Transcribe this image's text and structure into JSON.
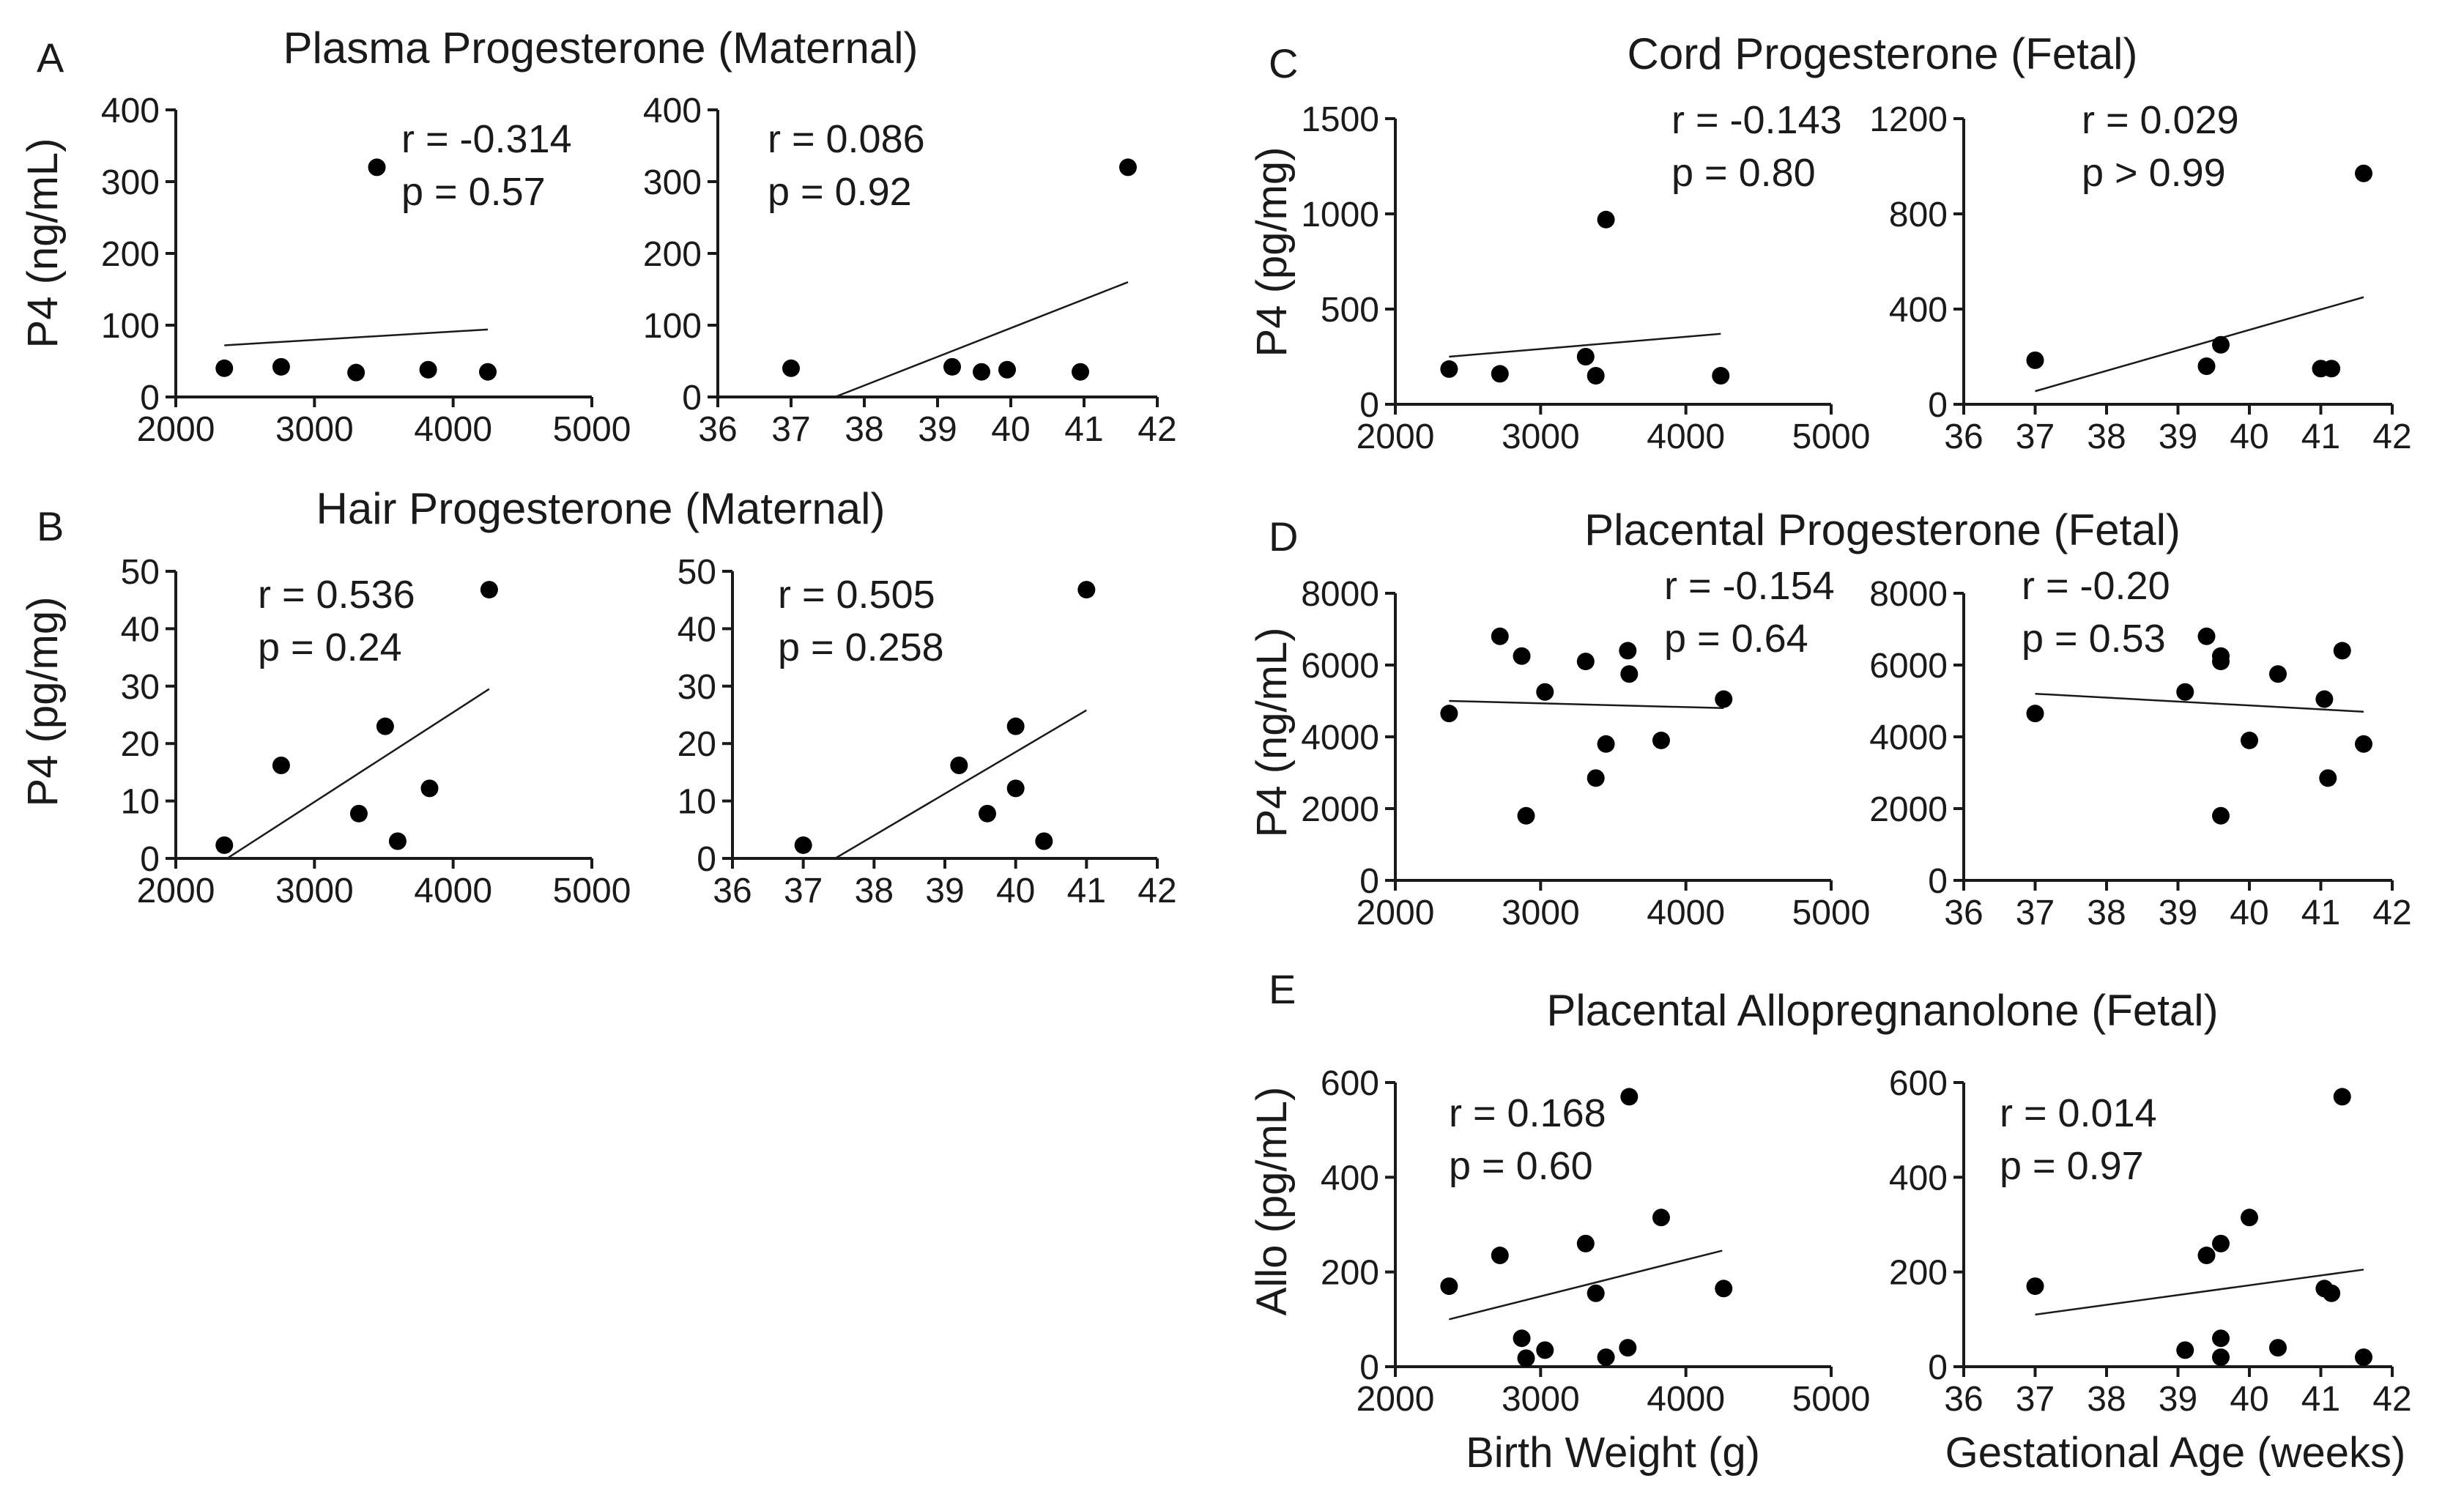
{
  "colors": {
    "ink": "#1a1a1a",
    "marker": "#000000",
    "background": "#ffffff"
  },
  "chart_data": [
    {
      "id": "A-bw",
      "panel": "A",
      "type": "scatter",
      "title": "Plasma Progesterone (Maternal)",
      "ylabel": "P4 (ng/mL)",
      "xlabel": "",
      "xlim": [
        2000,
        5000
      ],
      "ylim": [
        0,
        400
      ],
      "xticks": [
        "2000",
        "3000",
        "4000",
        "5000"
      ],
      "yticks": [
        "0",
        "100",
        "200",
        "300",
        "400"
      ],
      "xtick_values": [
        2000,
        3000,
        4000,
        5000
      ],
      "ytick_values": [
        0,
        100,
        200,
        300,
        400
      ],
      "stats": [
        "r = -0.314",
        "p = 0.57"
      ],
      "x": [
        2350,
        2760,
        3300,
        3450,
        3820,
        4250
      ],
      "y": [
        40,
        42,
        34,
        320,
        38,
        35
      ],
      "fit": {
        "x": [
          2350,
          4250
        ],
        "y": [
          72,
          94
        ]
      }
    },
    {
      "id": "A-ga",
      "panel": "A",
      "type": "scatter",
      "title": "",
      "ylabel": "",
      "xlabel": "",
      "xlim": [
        36,
        42
      ],
      "ylim": [
        0,
        400
      ],
      "xticks": [
        "36",
        "37",
        "38",
        "39",
        "40",
        "41",
        "42"
      ],
      "yticks": [
        "0",
        "100",
        "200",
        "300",
        "400"
      ],
      "xtick_values": [
        36,
        37,
        38,
        39,
        40,
        41,
        42
      ],
      "ytick_values": [
        0,
        100,
        200,
        300,
        400
      ],
      "stats": [
        "r = 0.086",
        "p = 0.92"
      ],
      "x": [
        37.0,
        39.2,
        39.6,
        39.95,
        40.95,
        41.6
      ],
      "y": [
        40,
        42,
        35,
        38,
        35,
        320
      ],
      "fit": {
        "x": [
          37.6,
          41.6
        ],
        "y": [
          0,
          160
        ]
      }
    },
    {
      "id": "B-bw",
      "panel": "B",
      "type": "scatter",
      "title": "Hair Progesterone (Maternal)",
      "ylabel": "P4 (pg/mg)",
      "xlabel": "",
      "xlim": [
        2000,
        5000
      ],
      "ylim": [
        0,
        50
      ],
      "xticks": [
        "2000",
        "3000",
        "4000",
        "5000"
      ],
      "yticks": [
        "0",
        "10",
        "20",
        "30",
        "40",
        "50"
      ],
      "xtick_values": [
        2000,
        3000,
        4000,
        5000
      ],
      "ytick_values": [
        0,
        10,
        20,
        30,
        40,
        50
      ],
      "stats": [
        "r = 0.536",
        "p = 0.24"
      ],
      "x": [
        2350,
        2760,
        3320,
        3510,
        3600,
        3830,
        4260
      ],
      "y": [
        2.3,
        16.2,
        7.8,
        23,
        3,
        12.2,
        46.8
      ],
      "fit": {
        "x": [
          2370,
          4260
        ],
        "y": [
          0,
          29.5
        ]
      }
    },
    {
      "id": "B-ga",
      "panel": "B",
      "type": "scatter",
      "title": "",
      "ylabel": "",
      "xlabel": "",
      "xlim": [
        36,
        42
      ],
      "ylim": [
        0,
        50
      ],
      "xticks": [
        "36",
        "37",
        "38",
        "39",
        "40",
        "41",
        "42"
      ],
      "yticks": [
        "0",
        "10",
        "20",
        "30",
        "40",
        "50"
      ],
      "xtick_values": [
        36,
        37,
        38,
        39,
        40,
        41,
        42
      ],
      "ytick_values": [
        0,
        10,
        20,
        30,
        40,
        50
      ],
      "stats": [
        "r = 0.505",
        "p = 0.258"
      ],
      "x": [
        37.0,
        39.2,
        39.6,
        40.0,
        40.0,
        40.4,
        41.0
      ],
      "y": [
        2.3,
        16.2,
        7.8,
        23,
        12.2,
        3,
        46.8
      ],
      "fit": {
        "x": [
          37.45,
          41.0
        ],
        "y": [
          0,
          25.8
        ]
      }
    },
    {
      "id": "C-bw",
      "panel": "C",
      "type": "scatter",
      "title": "Cord Progesterone (Fetal)",
      "ylabel": "P4 (pg/mg)",
      "xlabel": "",
      "xlim": [
        2000,
        5000
      ],
      "ylim": [
        0,
        1500
      ],
      "xticks": [
        "2000",
        "3000",
        "4000",
        "5000"
      ],
      "yticks": [
        "0",
        "500",
        "1000",
        "1500"
      ],
      "xtick_values": [
        2000,
        3000,
        4000,
        5000
      ],
      "ytick_values": [
        0,
        500,
        1000,
        1500
      ],
      "stats": [
        "r = -0.143",
        "p = 0.80"
      ],
      "x": [
        2370,
        2720,
        3310,
        3380,
        3450,
        4240
      ],
      "y": [
        185,
        160,
        250,
        150,
        970,
        150
      ],
      "fit": {
        "x": [
          2370,
          4240
        ],
        "y": [
          250,
          370
        ]
      }
    },
    {
      "id": "C-ga",
      "panel": "C",
      "type": "scatter",
      "title": "",
      "ylabel": "",
      "xlabel": "",
      "xlim": [
        36,
        42
      ],
      "ylim": [
        0,
        1200
      ],
      "xticks": [
        "36",
        "37",
        "38",
        "39",
        "40",
        "41",
        "42"
      ],
      "yticks": [
        "0",
        "400",
        "800",
        "1200"
      ],
      "xtick_values": [
        36,
        37,
        38,
        39,
        40,
        41,
        42
      ],
      "ytick_values": [
        0,
        400,
        800,
        1200
      ],
      "stats": [
        "r = 0.029",
        "p > 0.99"
      ],
      "x": [
        37.0,
        39.4,
        39.6,
        41.0,
        41.15,
        41.6
      ],
      "y": [
        185,
        160,
        250,
        150,
        150,
        970
      ],
      "fit": {
        "x": [
          37.0,
          41.6
        ],
        "y": [
          55,
          450
        ]
      }
    },
    {
      "id": "D-bw",
      "panel": "D",
      "type": "scatter",
      "title": "Placental Progesterone (Fetal)",
      "ylabel": "P4 (ng/mL)",
      "xlabel": "",
      "xlim": [
        2000,
        5000
      ],
      "ylim": [
        0,
        8000
      ],
      "xticks": [
        "2000",
        "3000",
        "4000",
        "5000"
      ],
      "yticks": [
        "0",
        "2000",
        "4000",
        "6000",
        "8000"
      ],
      "xtick_values": [
        2000,
        3000,
        4000,
        5000
      ],
      "ytick_values": [
        0,
        2000,
        4000,
        6000,
        8000
      ],
      "stats": [
        "r = -0.154",
        "p = 0.64"
      ],
      "x": [
        2370,
        2720,
        2870,
        2900,
        3030,
        3310,
        3380,
        3450,
        3600,
        3610,
        3830,
        4260
      ],
      "y": [
        4650,
        6800,
        6250,
        1800,
        5250,
        6100,
        2850,
        3800,
        6400,
        5750,
        3900,
        5050
      ],
      "fit": {
        "x": [
          2370,
          4260
        ],
        "y": [
          5000,
          4800
        ]
      }
    },
    {
      "id": "D-ga",
      "panel": "D",
      "type": "scatter",
      "title": "",
      "ylabel": "",
      "xlabel": "",
      "xlim": [
        36,
        42
      ],
      "ylim": [
        0,
        8000
      ],
      "xticks": [
        "36",
        "37",
        "38",
        "39",
        "40",
        "41",
        "42"
      ],
      "yticks": [
        "0",
        "2000",
        "4000",
        "6000",
        "8000"
      ],
      "xtick_values": [
        36,
        37,
        38,
        39,
        40,
        41,
        42
      ],
      "ytick_values": [
        0,
        2000,
        4000,
        6000,
        8000
      ],
      "stats": [
        "r = -0.20",
        "p = 0.53"
      ],
      "x": [
        37.0,
        39.1,
        39.4,
        39.6,
        39.6,
        39.6,
        40.0,
        40.4,
        41.05,
        41.1,
        41.3,
        41.6
      ],
      "y": [
        4650,
        5250,
        6800,
        6250,
        6100,
        1800,
        3900,
        5750,
        5050,
        2850,
        6400,
        3800
      ],
      "fit": {
        "x": [
          37.0,
          41.6
        ],
        "y": [
          5200,
          4700
        ]
      }
    },
    {
      "id": "E-bw",
      "panel": "E",
      "type": "scatter",
      "title": "Placental Allopregnanolone (Fetal)",
      "ylabel": "Allo (pg/mL)",
      "xlabel": "Birth Weight (g)",
      "xlim": [
        2000,
        5000
      ],
      "ylim": [
        0,
        600
      ],
      "xticks": [
        "2000",
        "3000",
        "4000",
        "5000"
      ],
      "yticks": [
        "0",
        "200",
        "400",
        "600"
      ],
      "xtick_values": [
        2000,
        3000,
        4000,
        5000
      ],
      "ytick_values": [
        0,
        200,
        400,
        600
      ],
      "stats": [
        "r = 0.168",
        "p = 0.60"
      ],
      "x": [
        2370,
        2720,
        2870,
        2900,
        3030,
        3310,
        3380,
        3450,
        3600,
        3610,
        3830,
        4260
      ],
      "y": [
        170,
        235,
        60,
        18,
        35,
        260,
        155,
        20,
        40,
        570,
        315,
        165
      ],
      "fit": {
        "x": [
          2370,
          4250
        ],
        "y": [
          100,
          245
        ]
      }
    },
    {
      "id": "E-ga",
      "panel": "E",
      "type": "scatter",
      "title": "",
      "ylabel": "",
      "xlabel": "Gestational Age (weeks)",
      "xlim": [
        36,
        42
      ],
      "ylim": [
        0,
        600
      ],
      "xticks": [
        "36",
        "37",
        "38",
        "39",
        "40",
        "41",
        "42"
      ],
      "yticks": [
        "0",
        "200",
        "400",
        "600"
      ],
      "xtick_values": [
        36,
        37,
        38,
        39,
        40,
        41,
        42
      ],
      "ytick_values": [
        0,
        200,
        400,
        600
      ],
      "stats": [
        "r = 0.014",
        "p = 0.97"
      ],
      "x": [
        37.0,
        39.1,
        39.4,
        39.6,
        39.6,
        39.6,
        40.0,
        40.4,
        41.05,
        41.15,
        41.3,
        41.6
      ],
      "y": [
        170,
        35,
        235,
        260,
        60,
        20,
        315,
        40,
        165,
        155,
        570,
        20
      ],
      "fit": {
        "x": [
          37.0,
          41.6
        ],
        "y": [
          110,
          205
        ]
      }
    }
  ]
}
